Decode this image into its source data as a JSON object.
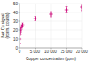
{
  "chart_data": {
    "type": "scatter",
    "xlabel": "Copper concentration (ppm)",
    "ylabel": "Net Cu signal\n(norm. counts)",
    "x": [
      50,
      100,
      200,
      300,
      500,
      800,
      1000,
      5000,
      10000,
      15000,
      20000
    ],
    "values": [
      5,
      10,
      15,
      18,
      21,
      24,
      26,
      33,
      38,
      43,
      46
    ],
    "errors": [
      0.5,
      0.8,
      1.0,
      1.2,
      1.5,
      1.5,
      2.0,
      2.5,
      3.0,
      3.5,
      4.0
    ],
    "color": "#cc0077",
    "marker": "plus",
    "xlim": [
      0,
      20000
    ],
    "ylim": [
      0,
      50
    ],
    "xticks": [
      0,
      {
        "value": 5000,
        "label": "5 000"
      },
      {
        "value": 10000,
        "label": "10 000"
      },
      {
        "value": 15000,
        "label": "15 000"
      },
      {
        "value": 20000,
        "label": "20 000"
      }
    ],
    "yticks": [
      0,
      10,
      20,
      30,
      40,
      50
    ],
    "grid": true
  }
}
